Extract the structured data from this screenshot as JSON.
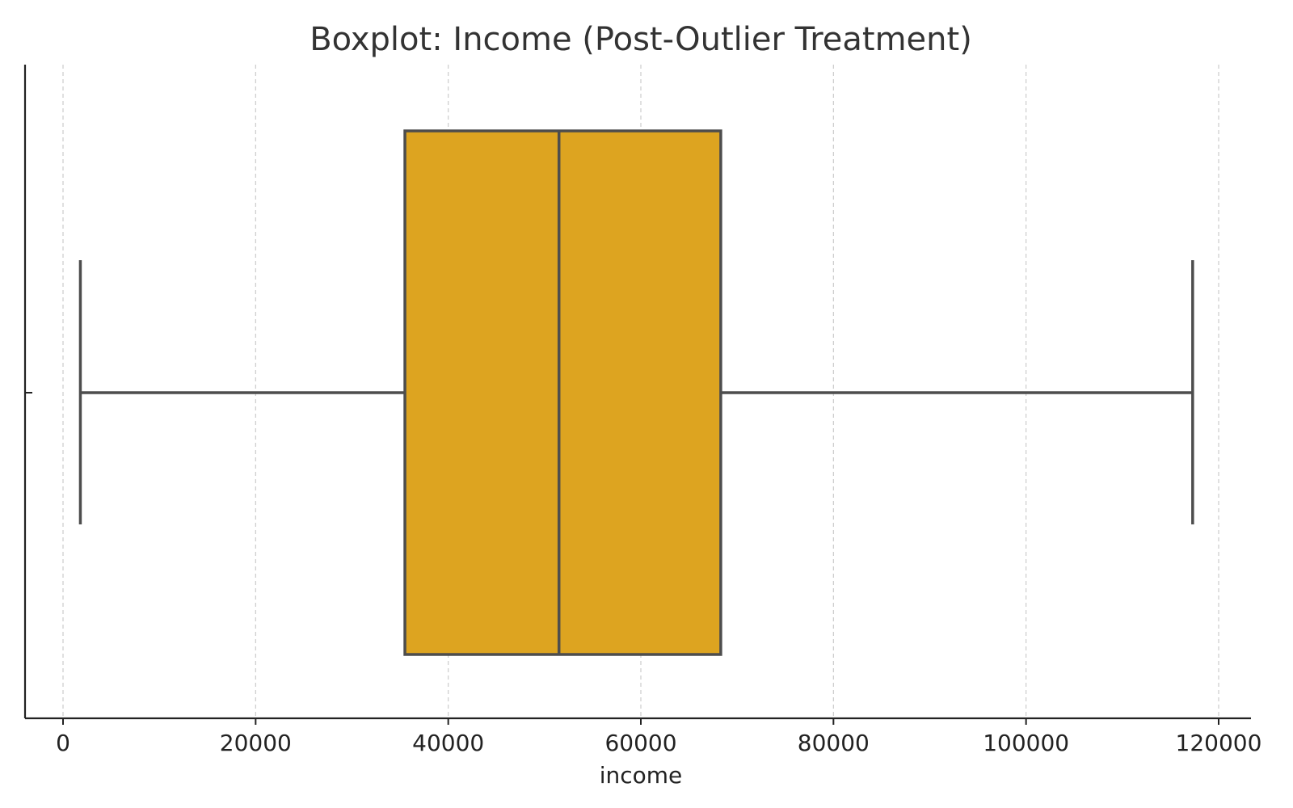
{
  "chart_data": {
    "type": "boxplot",
    "title": "Boxplot: Income (Post-Outlier Treatment)",
    "xlabel": "income",
    "ylabel": "",
    "orientation": "horizontal",
    "xlim": [
      -4000,
      123000
    ],
    "xticks": [
      0,
      20000,
      40000,
      60000,
      80000,
      100000,
      120000
    ],
    "xtick_labels": [
      "0",
      "20000",
      "40000",
      "60000",
      "80000",
      "100000",
      "120000"
    ],
    "grid": {
      "x": true,
      "y": false,
      "style": "dashed"
    },
    "box": {
      "whisker_low": 1800,
      "q1": 35500,
      "median": 51500,
      "q3": 68300,
      "whisker_high": 117300
    },
    "colors": {
      "box_fill": "#DDA420",
      "box_edge": "#4D4D4D",
      "grid": "#CCCCCC",
      "axis": "#222222",
      "title": "#333333"
    }
  }
}
